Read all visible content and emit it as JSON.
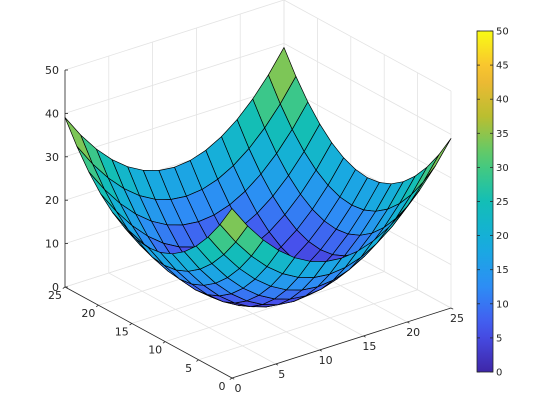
{
  "chart_data": {
    "type": "surface",
    "title": "",
    "xlabel": "",
    "ylabel": "",
    "zlabel": "",
    "function": "z = (x - 12.5)^2 / 8 + (y - 12.5)^2 / 8",
    "grid_steps": 14,
    "xlim": [
      0,
      25
    ],
    "ylim": [
      0,
      25
    ],
    "zlim": [
      0,
      50
    ],
    "x_ticks": [
      "0",
      "5",
      "10",
      "15",
      "20",
      "25"
    ],
    "y_ticks": [
      "0",
      "5",
      "10",
      "15",
      "20",
      "25"
    ],
    "z_ticks": [
      "0",
      "10",
      "20",
      "30",
      "40",
      "50"
    ],
    "corner_z": 39,
    "min_z": 0,
    "colorbar": {
      "range": [
        0,
        50
      ],
      "ticks": [
        "0",
        "5",
        "10",
        "15",
        "20",
        "25",
        "30",
        "35",
        "40",
        "45",
        "50"
      ],
      "colormap": "parula",
      "placement": "right"
    },
    "grid": true
  }
}
